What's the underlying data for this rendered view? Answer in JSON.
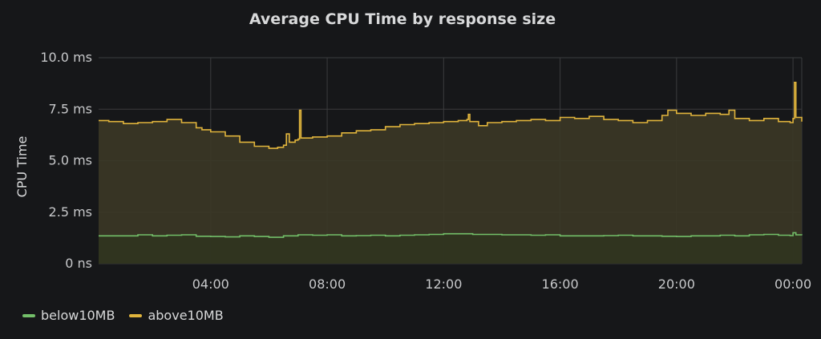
{
  "panel": {
    "title": "Average CPU Time by response size"
  },
  "colors": {
    "background": "#161719",
    "grid": "#3b3c3e",
    "below10MB": "#73bf69",
    "above10MB": "#e0b43c",
    "above_fill": "#3b3726",
    "below_fill": "#30341f"
  },
  "chart_data": {
    "type": "line",
    "title": "Average CPU Time by response size",
    "xlabel": "",
    "ylabel": "CPU Time",
    "ylim": [
      0,
      10
    ],
    "y_unit": "ms",
    "x_unit": "hours",
    "xlim": [
      0.15,
      24.3
    ],
    "y_ticks": [
      {
        "value": 0,
        "label": "0 ns"
      },
      {
        "value": 2.5,
        "label": "2.5 ms"
      },
      {
        "value": 5,
        "label": "5.0 ms"
      },
      {
        "value": 7.5,
        "label": "7.5 ms"
      },
      {
        "value": 10,
        "label": "10.0 ms"
      }
    ],
    "x_ticks": [
      {
        "value": 4,
        "label": "04:00"
      },
      {
        "value": 8,
        "label": "08:00"
      },
      {
        "value": 12,
        "label": "12:00"
      },
      {
        "value": 16,
        "label": "16:00"
      },
      {
        "value": 20,
        "label": "20:00"
      },
      {
        "value": 24,
        "label": "00:00"
      }
    ],
    "grid": true,
    "legend_position": "bottom-left",
    "series": [
      {
        "name": "below10MB",
        "color": "#73bf69",
        "points": [
          [
            0.15,
            1.35
          ],
          [
            1,
            1.35
          ],
          [
            1.5,
            1.4
          ],
          [
            2,
            1.35
          ],
          [
            2.5,
            1.38
          ],
          [
            3,
            1.4
          ],
          [
            3.5,
            1.33
          ],
          [
            4,
            1.32
          ],
          [
            4.5,
            1.3
          ],
          [
            5,
            1.35
          ],
          [
            5.5,
            1.32
          ],
          [
            6,
            1.28
          ],
          [
            6.5,
            1.35
          ],
          [
            7,
            1.4
          ],
          [
            7.5,
            1.38
          ],
          [
            8,
            1.4
          ],
          [
            8.5,
            1.35
          ],
          [
            9,
            1.36
          ],
          [
            9.5,
            1.38
          ],
          [
            10,
            1.35
          ],
          [
            10.5,
            1.38
          ],
          [
            11,
            1.4
          ],
          [
            11.5,
            1.42
          ],
          [
            12,
            1.45
          ],
          [
            12.5,
            1.45
          ],
          [
            13,
            1.42
          ],
          [
            13.5,
            1.42
          ],
          [
            14,
            1.4
          ],
          [
            14.5,
            1.4
          ],
          [
            15,
            1.38
          ],
          [
            15.5,
            1.4
          ],
          [
            16,
            1.35
          ],
          [
            16.5,
            1.35
          ],
          [
            17,
            1.35
          ],
          [
            17.5,
            1.36
          ],
          [
            18,
            1.38
          ],
          [
            18.5,
            1.35
          ],
          [
            19,
            1.35
          ],
          [
            19.5,
            1.33
          ],
          [
            20,
            1.32
          ],
          [
            20.5,
            1.35
          ],
          [
            21,
            1.35
          ],
          [
            21.5,
            1.38
          ],
          [
            22,
            1.35
          ],
          [
            22.5,
            1.4
          ],
          [
            23,
            1.42
          ],
          [
            23.5,
            1.38
          ],
          [
            23.9,
            1.36
          ],
          [
            24,
            1.5
          ],
          [
            24.1,
            1.4
          ],
          [
            24.3,
            1.38
          ]
        ]
      },
      {
        "name": "above10MB",
        "color": "#e0b43c",
        "points": [
          [
            0.15,
            6.95
          ],
          [
            0.5,
            6.9
          ],
          [
            1,
            6.8
          ],
          [
            1.5,
            6.85
          ],
          [
            2,
            6.9
          ],
          [
            2.5,
            7.0
          ],
          [
            3,
            6.85
          ],
          [
            3.5,
            6.6
          ],
          [
            3.7,
            6.5
          ],
          [
            4,
            6.4
          ],
          [
            4.5,
            6.2
          ],
          [
            5,
            5.9
          ],
          [
            5.5,
            5.7
          ],
          [
            6,
            5.6
          ],
          [
            6.3,
            5.65
          ],
          [
            6.5,
            5.75
          ],
          [
            6.6,
            6.3
          ],
          [
            6.7,
            5.9
          ],
          [
            6.9,
            6.0
          ],
          [
            7.0,
            6.05
          ],
          [
            7.05,
            7.45
          ],
          [
            7.1,
            6.1
          ],
          [
            7.5,
            6.15
          ],
          [
            8,
            6.2
          ],
          [
            8.5,
            6.35
          ],
          [
            9,
            6.45
          ],
          [
            9.5,
            6.5
          ],
          [
            10,
            6.65
          ],
          [
            10.5,
            6.75
          ],
          [
            11,
            6.8
          ],
          [
            11.5,
            6.85
          ],
          [
            12,
            6.9
          ],
          [
            12.5,
            6.95
          ],
          [
            12.8,
            7.0
          ],
          [
            12.85,
            7.25
          ],
          [
            12.9,
            6.9
          ],
          [
            13.2,
            6.7
          ],
          [
            13.5,
            6.85
          ],
          [
            14,
            6.9
          ],
          [
            14.5,
            6.95
          ],
          [
            15,
            7.0
          ],
          [
            15.5,
            6.95
          ],
          [
            16,
            7.1
          ],
          [
            16.5,
            7.05
          ],
          [
            17,
            7.15
          ],
          [
            17.5,
            7.0
          ],
          [
            18,
            6.95
          ],
          [
            18.5,
            6.85
          ],
          [
            19,
            6.95
          ],
          [
            19.5,
            7.2
          ],
          [
            19.7,
            7.45
          ],
          [
            20,
            7.3
          ],
          [
            20.5,
            7.2
          ],
          [
            21,
            7.3
          ],
          [
            21.5,
            7.25
          ],
          [
            21.8,
            7.45
          ],
          [
            22,
            7.05
          ],
          [
            22.5,
            6.95
          ],
          [
            23,
            7.05
          ],
          [
            23.5,
            6.9
          ],
          [
            23.9,
            6.85
          ],
          [
            24.0,
            7.05
          ],
          [
            24.05,
            8.8
          ],
          [
            24.1,
            7.1
          ],
          [
            24.3,
            6.9
          ]
        ]
      }
    ]
  },
  "legend": {
    "items": [
      {
        "label": "below10MB",
        "color": "#73bf69"
      },
      {
        "label": "above10MB",
        "color": "#e0b43c"
      }
    ]
  }
}
